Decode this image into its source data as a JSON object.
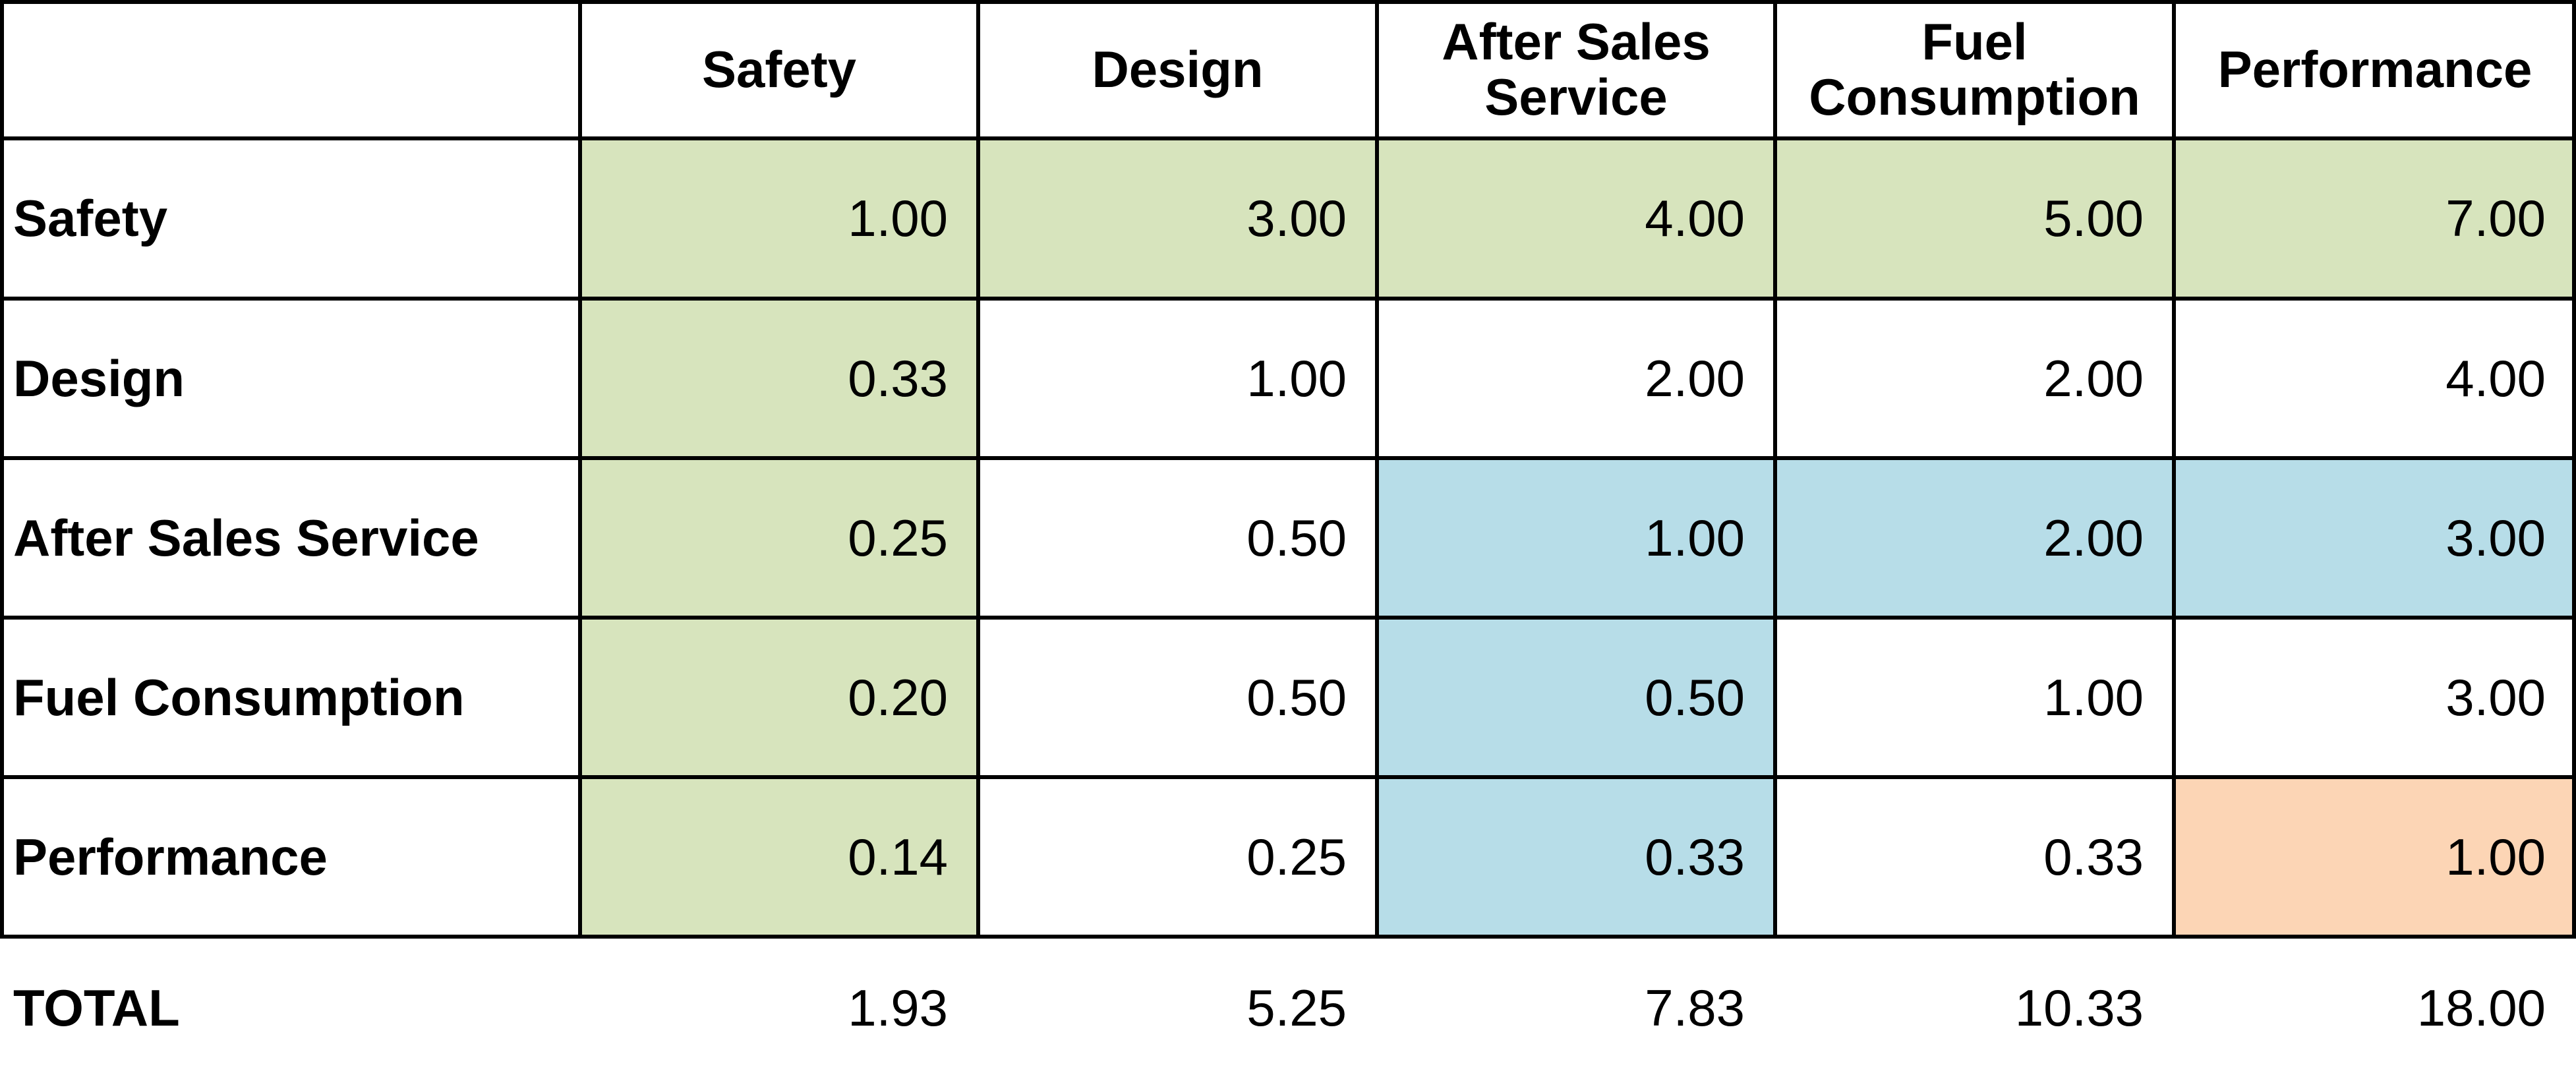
{
  "chart_data": {
    "type": "table",
    "columns": [
      "Safety",
      "Design",
      "After Sales\nService",
      "Fuel\nConsumption",
      "Performance"
    ],
    "rows": [
      {
        "label": "Safety",
        "values": [
          "1.00",
          "3.00",
          "4.00",
          "5.00",
          "7.00"
        ]
      },
      {
        "label": "Design",
        "values": [
          "0.33",
          "1.00",
          "2.00",
          "2.00",
          "4.00"
        ]
      },
      {
        "label": "After Sales Service",
        "values": [
          "0.25",
          "0.50",
          "1.00",
          "2.00",
          "3.00"
        ]
      },
      {
        "label": "Fuel Consumption",
        "values": [
          "0.20",
          "0.50",
          "0.50",
          "1.00",
          "3.00"
        ]
      },
      {
        "label": "Performance",
        "values": [
          "0.14",
          "0.25",
          "0.33",
          "0.33",
          "1.00"
        ]
      }
    ],
    "total": {
      "label": "TOTAL",
      "values": [
        "1.93",
        "5.25",
        "7.83",
        "10.33",
        "18.00"
      ]
    },
    "highlight_colors": {
      "green": "#d7e4bd",
      "blue": "#b7dde8",
      "orange": "#fcd5b5"
    },
    "cell_highlights": [
      [
        "green",
        "green",
        "green",
        "green",
        "green"
      ],
      [
        "green",
        "",
        "",
        "",
        ""
      ],
      [
        "green",
        "",
        "blue",
        "blue",
        "blue"
      ],
      [
        "green",
        "",
        "blue",
        "",
        ""
      ],
      [
        "green",
        "",
        "blue",
        "",
        "orange"
      ]
    ]
  }
}
